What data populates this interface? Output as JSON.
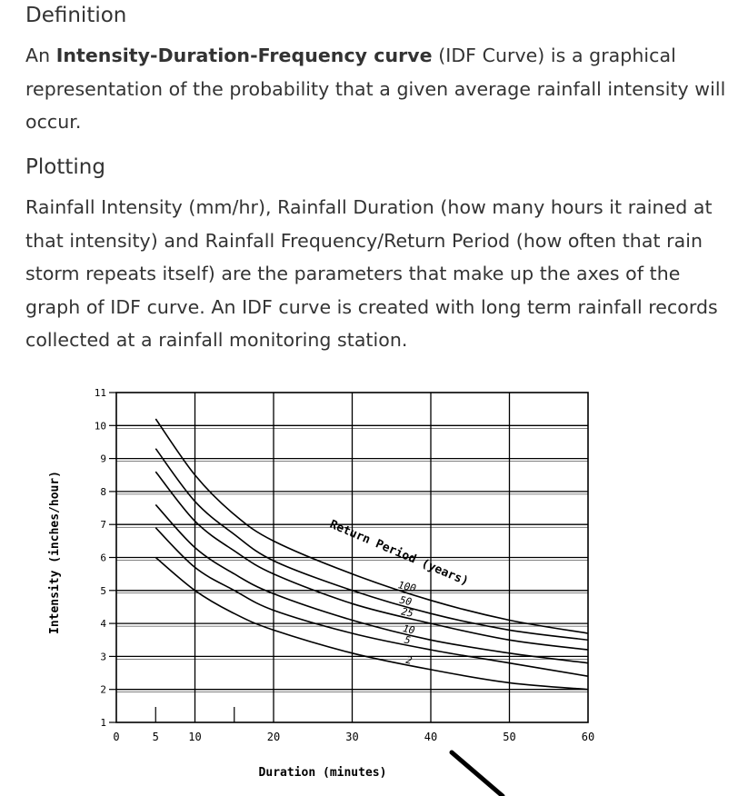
{
  "definition": {
    "heading": "Definition",
    "text_prefix": "An ",
    "term": "Intensity-Duration-Frequency curve",
    "text_suffix": " (IDF Curve)  is a graphical representation of the probability that a given average rainfall intensity will occur."
  },
  "plotting": {
    "heading": "Plotting",
    "text": "Rainfall Intensity (mm/hr), Rainfall Duration (how many hours it rained at that intensity) and Rainfall Frequency/Return Period (how often that rain storm repeats itself) are the parameters that make up the axes of the graph of IDF curve. An IDF curve is created with long term rainfall records collected at a rainfall monitoring station."
  },
  "chart_data": {
    "type": "line",
    "title": "",
    "xlabel": "Duration (minutes)",
    "ylabel": "Intensity (inches/hour)",
    "xlim": [
      0,
      60
    ],
    "ylim": [
      1,
      11
    ],
    "x_ticks": [
      0,
      5,
      10,
      20,
      30,
      40,
      50,
      60
    ],
    "y_ticks": [
      1,
      2,
      3,
      4,
      5,
      6,
      7,
      8,
      9,
      10,
      11
    ],
    "grid": true,
    "legend_title": "Return Period (years)",
    "x": [
      5,
      10,
      15,
      20,
      30,
      40,
      50,
      60
    ],
    "series": [
      {
        "name": "100",
        "values": [
          10.2,
          8.5,
          7.3,
          6.5,
          5.5,
          4.7,
          4.1,
          3.7
        ]
      },
      {
        "name": "50",
        "values": [
          9.3,
          7.7,
          6.7,
          5.9,
          5.0,
          4.3,
          3.8,
          3.5
        ]
      },
      {
        "name": "25",
        "values": [
          8.6,
          7.1,
          6.2,
          5.5,
          4.6,
          4.0,
          3.5,
          3.2
        ]
      },
      {
        "name": "10",
        "values": [
          7.6,
          6.3,
          5.5,
          4.9,
          4.1,
          3.5,
          3.1,
          2.8
        ]
      },
      {
        "name": "5",
        "values": [
          6.9,
          5.7,
          5.0,
          4.4,
          3.7,
          3.2,
          2.8,
          2.4
        ]
      },
      {
        "name": "2",
        "values": [
          6.0,
          5.0,
          4.3,
          3.8,
          3.1,
          2.6,
          2.2,
          2.0
        ]
      }
    ]
  }
}
